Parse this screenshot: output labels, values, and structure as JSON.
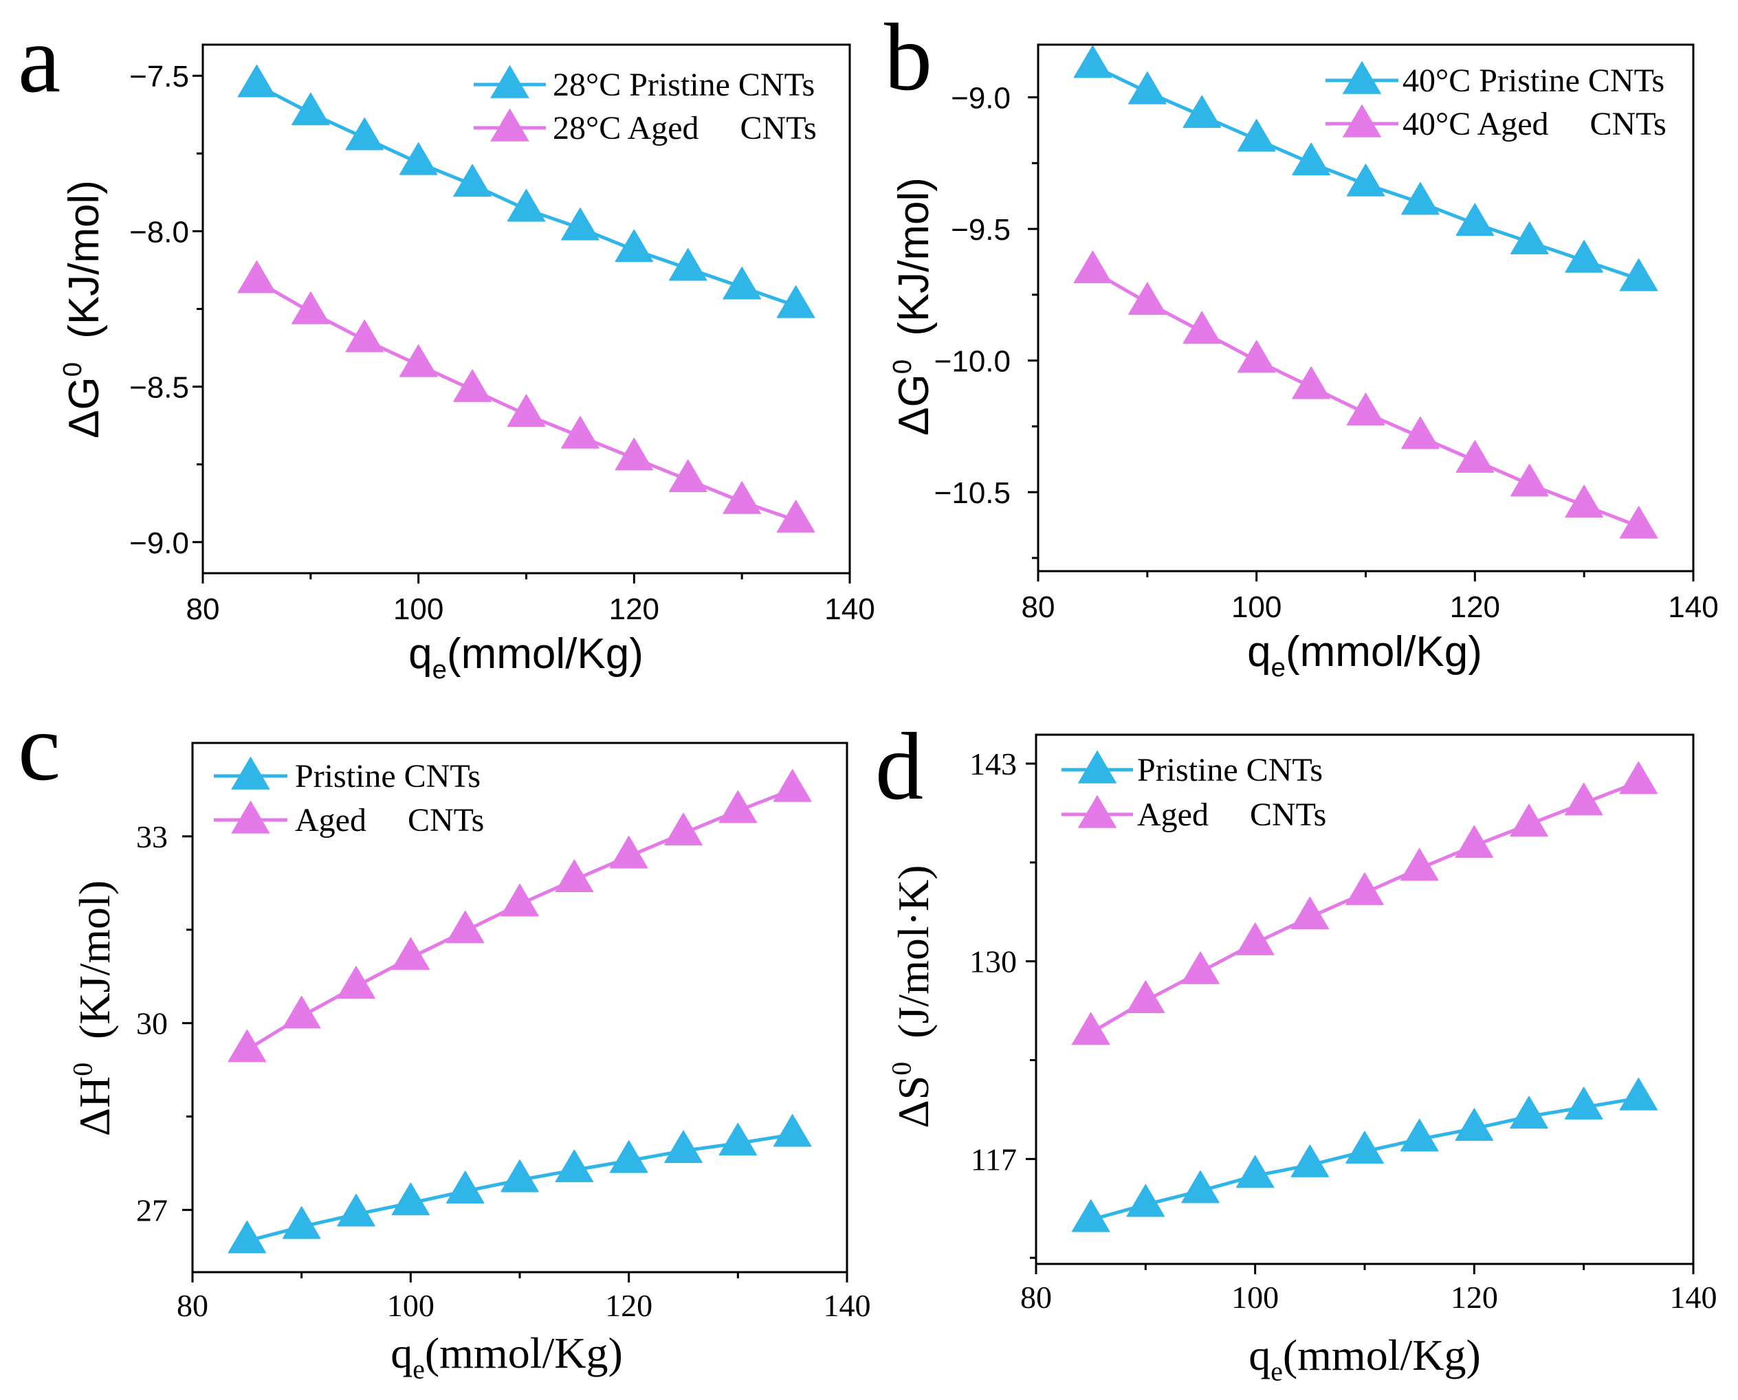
{
  "chart_data": [
    {
      "type": "line",
      "panel_label": "a",
      "x": [
        85,
        90,
        95,
        100,
        105,
        110,
        115,
        120,
        125,
        130,
        135
      ],
      "series": [
        {
          "name": "28°C Pristine CNTs",
          "color": "#30B5E8",
          "marker": "triangle",
          "values": [
            -7.53,
            -7.62,
            -7.7,
            -7.78,
            -7.85,
            -7.93,
            -7.99,
            -8.06,
            -8.12,
            -8.18,
            -8.24
          ]
        },
        {
          "name": "28°C Aged     CNTs",
          "color": "#E47AE8",
          "marker": "triangle",
          "values": [
            -8.16,
            -8.26,
            -8.35,
            -8.43,
            -8.51,
            -8.59,
            -8.66,
            -8.73,
            -8.8,
            -8.87,
            -8.93
          ]
        }
      ],
      "xlabel": {
        "base": "q",
        "sub": "e",
        "unit": "(mmol/Kg)"
      },
      "ylabel": {
        "base": "ΔG",
        "sup": "0",
        "unit": "(KJ/mol)"
      },
      "xlim": [
        80,
        140
      ],
      "ylim": [
        -9.1,
        -7.4
      ],
      "xticks": [
        80,
        100,
        120,
        140
      ],
      "xticklabels": [
        "80",
        "100",
        "120",
        "140"
      ],
      "xminor": [
        90,
        110,
        130
      ],
      "yticks": [
        -7.5,
        -8.0,
        -8.5,
        -9.0
      ],
      "yticklabels": [
        "−7.5",
        "−8.0",
        "−8.5",
        "−9.0"
      ],
      "yminor": [
        -7.75,
        -8.25,
        -8.75
      ],
      "legend": "top-right",
      "grid": false
    },
    {
      "type": "line",
      "panel_label": "b",
      "x": [
        85,
        90,
        95,
        100,
        105,
        110,
        115,
        120,
        125,
        130,
        135
      ],
      "series": [
        {
          "name": "40°C Pristine CNTs",
          "color": "#30B5E8",
          "marker": "triangle",
          "values": [
            -8.88,
            -8.98,
            -9.07,
            -9.16,
            -9.25,
            -9.33,
            -9.4,
            -9.48,
            -9.55,
            -9.62,
            -9.69
          ]
        },
        {
          "name": "40°C Aged     CNTs",
          "color": "#E47AE8",
          "marker": "triangle",
          "values": [
            -9.66,
            -9.78,
            -9.89,
            -10.0,
            -10.1,
            -10.2,
            -10.29,
            -10.38,
            -10.47,
            -10.55,
            -10.63
          ]
        }
      ],
      "xlabel": {
        "base": "q",
        "sub": "e",
        "unit": "(mmol/Kg)"
      },
      "ylabel": {
        "base": "ΔG",
        "sup": "0",
        "unit": "(KJ/mol)"
      },
      "xlim": [
        80,
        140
      ],
      "ylim": [
        -10.8,
        -8.8
      ],
      "xticks": [
        80,
        100,
        120,
        140
      ],
      "xticklabels": [
        "80",
        "100",
        "120",
        "140"
      ],
      "xminor": [
        90,
        110,
        130
      ],
      "yticks": [
        -9.0,
        -9.5,
        -10.0,
        -10.5
      ],
      "yticklabels": [
        "−9.0",
        "−9.5",
        "−10.0",
        "−10.5"
      ],
      "yminor": [
        -9.25,
        -9.75,
        -10.25,
        -10.75
      ],
      "legend": "top-right",
      "grid": false
    },
    {
      "type": "line",
      "panel_label": "c",
      "x": [
        85,
        90,
        95,
        100,
        105,
        110,
        115,
        120,
        125,
        130,
        135
      ],
      "series": [
        {
          "name": "Pristine CNTs",
          "color": "#30B5E8",
          "marker": "triangle",
          "values": [
            26.5,
            26.73,
            26.93,
            27.11,
            27.3,
            27.48,
            27.64,
            27.79,
            27.95,
            28.07,
            28.21
          ]
        },
        {
          "name": "Aged     CNTs",
          "color": "#E47AE8",
          "marker": "triangle",
          "values": [
            29.57,
            30.11,
            30.59,
            31.05,
            31.48,
            31.91,
            32.3,
            32.68,
            33.05,
            33.41,
            33.75
          ]
        }
      ],
      "xlabel": {
        "base": "q",
        "sub": "e",
        "unit": "(mmol/Kg)"
      },
      "ylabel": {
        "base": "ΔH",
        "sup": "0",
        "unit": "(KJ/mol)"
      },
      "xlim": [
        80,
        140
      ],
      "ylim": [
        26.0,
        34.5
      ],
      "xticks": [
        80,
        100,
        120,
        140
      ],
      "xticklabels": [
        "80",
        "100",
        "120",
        "140"
      ],
      "xminor": [
        90,
        110,
        130
      ],
      "yticks": [
        27,
        30,
        33
      ],
      "yticklabels": [
        "27",
        "30",
        "33"
      ],
      "yminor": [
        28.5,
        31.5
      ],
      "legend": "top-left",
      "grid": false
    },
    {
      "type": "line",
      "panel_label": "d",
      "x": [
        85,
        90,
        95,
        100,
        105,
        110,
        115,
        120,
        125,
        130,
        135
      ],
      "series": [
        {
          "name": "Pristine CNTs",
          "color": "#30B5E8",
          "marker": "triangle",
          "values": [
            113.0,
            114.0,
            114.9,
            115.9,
            116.6,
            117.5,
            118.3,
            119.0,
            119.8,
            120.4,
            121.0
          ]
        },
        {
          "name": "Aged     CNTs",
          "color": "#E47AE8",
          "marker": "triangle",
          "values": [
            125.3,
            127.4,
            129.3,
            131.2,
            132.9,
            134.5,
            136.1,
            137.6,
            139.0,
            140.4,
            141.8
          ]
        }
      ],
      "xlabel": {
        "base": "q",
        "sub": "e",
        "unit": "(mmol/Kg)"
      },
      "ylabel": {
        "base": "ΔS",
        "sup": "0",
        "unit": "(J/mol·K)"
      },
      "xlim": [
        80,
        140
      ],
      "ylim": [
        110.1,
        144.9
      ],
      "xticks": [
        80,
        100,
        120,
        140
      ],
      "xticklabels": [
        "80",
        "100",
        "120",
        "140"
      ],
      "xminor": [
        90,
        110,
        130
      ],
      "yticks": [
        117,
        130,
        143
      ],
      "yticklabels": [
        "117",
        "130",
        "143"
      ],
      "yminor": [
        110.5,
        123.5,
        136.5
      ],
      "legend": "top-left",
      "grid": false
    }
  ]
}
